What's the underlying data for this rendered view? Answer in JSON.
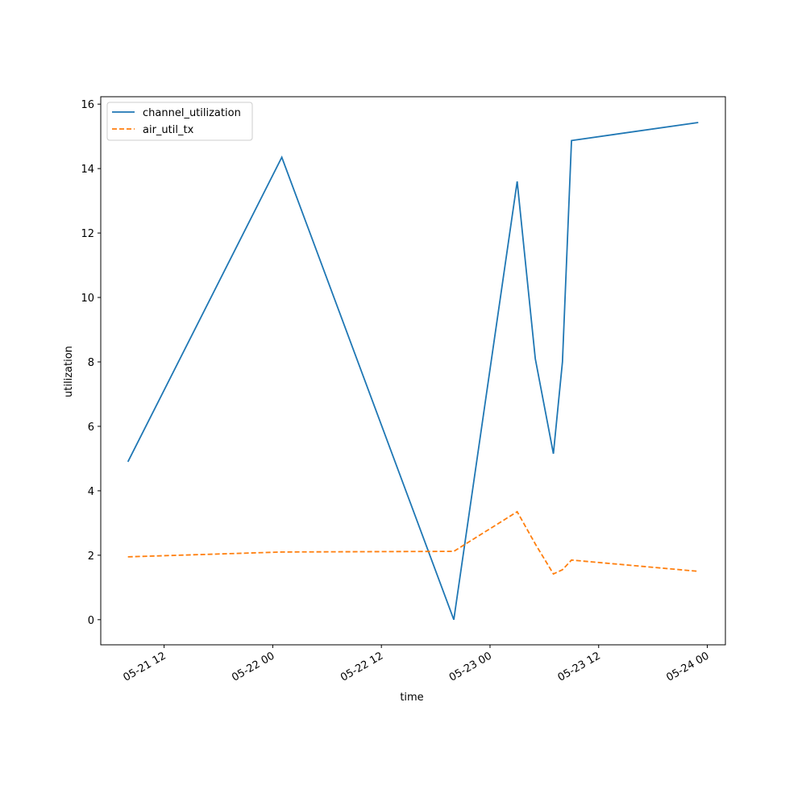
{
  "chart_data": {
    "type": "line",
    "x": [
      "05-21 08",
      "05-22 01",
      "05-22 20",
      "05-23 03",
      "05-23 05",
      "05-23 07",
      "05-23 08",
      "05-23 09",
      "05-23 23"
    ],
    "series": [
      {
        "name": "channel_utilization",
        "color": "#1f77b4",
        "dash": false,
        "values": [
          4.9,
          14.35,
          0.0,
          13.6,
          8.1,
          5.15,
          8.0,
          14.87,
          15.43
        ]
      },
      {
        "name": "air_util_tx",
        "color": "#ff7f0e",
        "dash": true,
        "values": [
          1.95,
          2.1,
          2.12,
          3.35,
          2.35,
          1.42,
          1.55,
          1.85,
          1.5
        ]
      }
    ],
    "xlabel": "time",
    "ylabel": "utilization",
    "xlim": [
      "05-21 05",
      "05-24 02"
    ],
    "xticks": [
      "05-21 12",
      "05-22 00",
      "05-22 12",
      "05-23 00",
      "05-23 12",
      "05-24 00"
    ],
    "ylim": [
      -0.78,
      16.23
    ],
    "yticks": [
      0,
      2,
      4,
      6,
      8,
      10,
      12,
      14,
      16
    ],
    "legend": "upper-left"
  }
}
